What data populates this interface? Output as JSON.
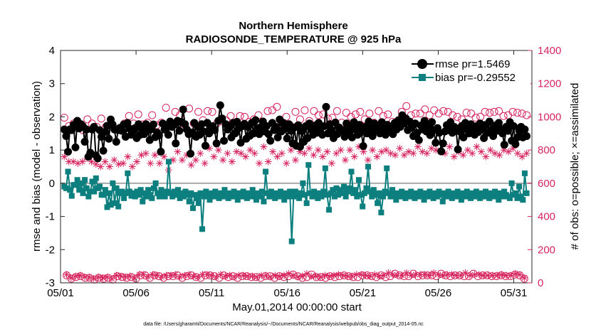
{
  "chart_data": {
    "type": "line",
    "title": "Northern Hemisphere",
    "subtitle": "RADIOSONDE_TEMPERATURE @ 925 hPa",
    "xlabel": "May.01,2014 00:00:00 start",
    "ylabel": "rmse and bias (model - observation)",
    "ylabel_right": "# of obs: o=possible; ×=assimilated",
    "footnote": "data file: /Users/gharamti/Documents/NCAR/Reanalysis/~/Documents/NCAR/Reanalysis/webpub/obs_diag_output_2014-05.nc",
    "x_ticks": [
      "05/01",
      "05/06",
      "05/11",
      "05/16",
      "05/21",
      "05/26",
      "05/31"
    ],
    "y_ticks": [
      "-3",
      "-2",
      "-1",
      "0",
      "1",
      "2",
      "3",
      "4"
    ],
    "y_ticks_right": [
      "0",
      "200",
      "400",
      "600",
      "800",
      "1000",
      "1200",
      "1400"
    ],
    "xlim": [
      0,
      31.2
    ],
    "ylim": [
      -3,
      4
    ],
    "ylim_right": [
      0,
      1400
    ],
    "legend_position": "top-right",
    "colors": {
      "rmse": "#000000",
      "bias": "#0d7f7f",
      "obs": "#d6245e",
      "zero_line": "#aaaaaa"
    },
    "series": [
      {
        "name": "rmse pr=1.5469",
        "axis": "left",
        "marker": "circle-filled",
        "values": [
          1.62,
          1.42,
          0.95,
          1.62,
          1.6,
          1.76,
          1.08,
          1.88,
          1.65,
          1.78,
          1.72,
          1.25,
          1.62,
          0.8,
          0.92,
          1.62,
          1.7,
          0.84,
          0.75,
          1.6,
          1.4,
          0.98,
          1.55,
          1.73,
          1.34,
          1.92,
          1.77,
          1.62,
          1.25,
          1.6,
          1.67,
          1.58,
          1.77,
          1.4,
          1.82,
          1.65,
          1.46,
          1.57,
          1.66,
          1.36,
          1.78,
          1.46,
          1.62,
          1.48,
          1.78,
          1.59,
          1.3,
          1.63,
          1.77,
          1.39,
          1.53,
          1.44,
          0.95,
          1.8,
          1.62,
          1.7,
          1.46,
          1.86,
          1.7,
          1.76,
          1.2,
          1.88,
          1.58,
          1.85,
          2.22,
          1.78,
          1.62,
          1.48,
          0.89,
          1.53,
          1.82,
          1.4,
          1.7,
          1.46,
          1.78,
          1.56,
          1.13,
          1.82,
          1.5,
          1.65,
          1.72,
          1.6,
          1.2,
          1.88,
          2.35,
          1.95,
          1.28,
          1.78,
          1.62,
          1.7,
          1.38,
          1.82,
          1.5,
          1.85,
          1.66,
          1.22,
          1.72,
          1.79,
          1.34,
          1.7,
          1.43,
          1.82,
          1.5,
          1.9,
          1.66,
          1.48,
          1.7,
          1.86,
          1.56,
          1.72,
          1.48,
          1.28,
          1.82,
          1.6,
          1.7,
          1.38,
          1.92,
          1.56,
          1.82,
          1.65,
          1.35,
          1.78,
          1.58,
          1.2,
          1.68,
          1.13,
          1.75,
          1.1,
          1.57,
          1.25,
          1.72,
          1.36,
          1.8,
          1.62,
          1.46,
          1.74,
          1.52,
          1.82,
          1.64,
          1.46,
          1.72,
          2.3,
          1.5,
          1.78,
          1.6,
          1.36,
          1.83,
          1.48,
          1.68,
          1.58,
          1.6,
          1.4,
          1.8,
          1.55,
          1.7,
          1.38,
          1.84,
          1.61,
          1.46,
          1.76,
          1.54,
          1.12,
          1.7,
          1.5,
          1.86,
          1.64,
          1.42,
          1.8,
          1.58,
          1.7,
          1.5,
          1.84,
          1.62,
          1.46,
          1.76,
          1.58,
          1.66,
          1.48,
          1.82,
          1.62,
          1.9,
          1.7,
          2.05,
          1.8,
          1.95,
          1.6,
          1.86,
          1.68,
          1.42,
          1.8,
          1.52,
          1.3,
          1.74,
          1.62,
          1.88,
          1.56,
          1.72,
          1.45,
          1.84,
          1.6,
          1.22,
          1.66,
          1.52,
          0.96,
          1.2,
          1.56,
          1.75,
          1.6,
          1.84,
          1.52,
          1.7,
          1.62,
          1.02,
          1.56,
          1.72,
          1.38,
          1.82,
          1.62,
          1.5,
          1.78,
          1.6,
          1.46,
          1.72,
          1.54,
          1.8,
          1.64,
          1.36,
          1.76,
          1.52,
          1.86,
          1.6,
          1.42,
          1.74,
          1.58,
          1.82,
          1.64,
          1.5,
          1.16,
          1.7,
          1.58,
          1.84,
          1.28,
          1.72,
          1.18,
          1.38,
          1.58,
          1.7,
          1.38,
          1.62,
          1.42
        ]
      },
      {
        "name": "bias pr=-0.29552",
        "axis": "left",
        "marker": "square-filled",
        "values": [
          -0.1,
          -0.15,
          0.35,
          -0.2,
          -0.38,
          -0.05,
          -0.05,
          0.1,
          -0.2,
          0.0,
          -0.3,
          0.1,
          -0.15,
          -0.4,
          -0.25,
          0.05,
          -0.25,
          0.15,
          -0.15,
          -0.1,
          -0.35,
          -0.35,
          -0.2,
          -0.72,
          -0.3,
          -0.65,
          0.0,
          -0.6,
          -0.15,
          -0.7,
          -0.3,
          -0.25,
          -0.45,
          -0.3,
          0.3,
          -0.25,
          -0.38,
          -0.3,
          -0.4,
          -0.25,
          -0.35,
          -0.2,
          -0.55,
          -0.3,
          -0.4,
          -0.2,
          -0.35,
          -0.45,
          -0.15,
          0.0,
          -0.3,
          -0.4,
          -0.2,
          -0.35,
          -0.4,
          -0.25,
          0.65,
          -0.3,
          -0.4,
          -0.25,
          -0.35,
          -0.2,
          -0.45,
          -0.3,
          -0.4,
          -0.25,
          -0.35,
          -0.55,
          -0.3,
          -0.75,
          -0.35,
          -0.45,
          -0.6,
          -0.3,
          -1.38,
          -0.4,
          -0.25,
          -0.35,
          -0.5,
          -0.3,
          -0.4,
          -0.25,
          -0.35,
          -0.45,
          -0.3,
          -0.4,
          -0.2,
          -0.35,
          -0.45,
          -0.3,
          -0.4,
          -0.25,
          -0.35,
          -0.5,
          -0.3,
          -0.4,
          -0.25,
          -0.35,
          -0.45,
          -0.3,
          -0.4,
          -0.2,
          -0.35,
          -0.5,
          -0.3,
          -0.4,
          -0.25,
          -0.55,
          0.35,
          -0.3,
          -0.4,
          -0.25,
          -0.35,
          -0.45,
          -0.3,
          -0.4,
          -0.25,
          -0.35,
          -0.5,
          -0.3,
          -0.4,
          -0.25,
          -1.75,
          -0.4,
          -0.25,
          -0.35,
          -0.45,
          -0.3,
          0.0,
          -0.35,
          -0.6,
          0.55,
          -0.3,
          -0.4,
          -0.25,
          -0.35,
          -0.45,
          -0.3,
          -0.4,
          -0.25,
          0.45,
          -0.35,
          -0.8,
          -0.3,
          -0.2,
          -0.4,
          -0.15,
          -0.35,
          -0.2,
          -0.3,
          -0.1,
          -0.4,
          -0.25,
          -0.15,
          0.35,
          -0.3,
          -0.2,
          -0.4,
          0.1,
          -0.35,
          -0.7,
          -0.3,
          -0.15,
          0.5,
          -0.25,
          -0.4,
          -0.2,
          -0.35,
          -0.6,
          -0.3,
          -0.88,
          -0.4,
          -0.25,
          0.45,
          -0.3,
          -0.4,
          -0.2,
          -0.35,
          -0.5,
          -0.3,
          -0.4,
          -0.25,
          -0.35,
          -0.45,
          -0.3,
          -0.4,
          -0.25,
          -0.35,
          -0.45,
          -0.3,
          -0.4,
          -0.25,
          -0.35,
          -0.5,
          -0.3,
          -0.4,
          -0.25,
          -0.35,
          -0.45,
          -0.3,
          -0.4,
          -0.25,
          -0.35,
          -0.55,
          -0.3,
          -0.4,
          -0.25,
          -0.35,
          -0.45,
          -0.3,
          -0.4,
          -0.25,
          -0.35,
          -0.5,
          -0.3,
          -0.4,
          -0.25,
          -0.35,
          -0.45,
          -0.3,
          -0.4,
          -0.25,
          -0.35,
          -0.45,
          -0.3,
          -0.4,
          -0.25,
          -0.35,
          -0.45,
          -0.3,
          -0.4,
          -0.25,
          -0.35,
          -0.5,
          -0.3,
          -0.4,
          -0.25,
          -0.35,
          -0.4,
          -0.45,
          0.0,
          -0.35,
          -0.3,
          -0.45,
          -0.1,
          -0.4,
          -0.5,
          0.3,
          -0.3
        ]
      },
      {
        "name": "possible",
        "axis": "right",
        "marker": "circle-open",
        "values": [
          995,
          45,
          945,
          25,
          960,
          35,
          950,
          40,
          920,
          30,
          985,
          30,
          960,
          20,
          940,
          30,
          990,
          25,
          940,
          30,
          955,
          20,
          930,
          40,
          925,
          35,
          960,
          30,
          1005,
          35,
          960,
          25,
          1015,
          45,
          955,
          45,
          965,
          30,
          1010,
          45,
          950,
          40,
          965,
          30,
          1055,
          40,
          955,
          40,
          1030,
          45,
          1010,
          30,
          955,
          40,
          1050,
          45,
          960,
          35,
          1030,
          30,
          980,
          45,
          1035,
          45,
          1030,
          40,
          960,
          30,
          975,
          45,
          980,
          35,
          1005,
          40,
          955,
          30,
          1005,
          40,
          1000,
          40,
          970,
          35,
          985,
          35,
          1010,
          30,
          945,
          40,
          1035,
          40,
          1040,
          30,
          1060,
          40,
          955,
          35,
          1000,
          40,
          945,
          50,
          1030,
          40,
          985,
          30,
          1040,
          35,
          975,
          50,
          1035,
          35,
          1010,
          35,
          1015,
          30,
          990,
          40,
          995,
          35,
          1035,
          40,
          965,
          45,
          1025,
          40,
          1000,
          35,
          1015,
          35,
          1030,
          45,
          985,
          45,
          1020,
          40,
          965,
          35,
          1035,
          45,
          1005,
          35,
          1015,
          40,
          970,
          55,
          945,
          45,
          1030,
          40,
          1065,
          40,
          1010,
          55,
          1020,
          40,
          1020,
          45,
          1045,
          45,
          1010,
          45,
          1040,
          40,
          1020,
          55,
          1035,
          45,
          1030,
          40,
          1010,
          45,
          1000,
          45,
          985,
          40,
          1025,
          40,
          1020,
          55,
          995,
          40,
          1000,
          45,
          1030,
          45,
          1025,
          40,
          1030,
          40,
          1035,
          45,
          1005,
          40,
          1010,
          40,
          1030,
          50,
          1025,
          45,
          1020,
          25,
          1010
        ]
      },
      {
        "name": "assimilated",
        "axis": "right",
        "marker": "asterisk",
        "values": [
          760,
          50,
          730,
          30,
          730,
          40,
          720,
          45,
          730,
          35,
          750,
          35,
          730,
          25,
          715,
          35,
          700,
          30,
          730,
          35,
          700,
          25,
          740,
          45,
          715,
          40,
          720,
          35,
          760,
          40,
          700,
          30,
          730,
          50,
          770,
          50,
          780,
          35,
          720,
          50,
          770,
          45,
          720,
          35,
          760,
          45,
          680,
          45,
          740,
          50,
          790,
          35,
          740,
          45,
          770,
          50,
          710,
          40,
          740,
          35,
          780,
          50,
          720,
          50,
          810,
          45,
          760,
          35,
          800,
          50,
          740,
          40,
          780,
          45,
          730,
          35,
          790,
          45,
          780,
          45,
          760,
          40,
          800,
          40,
          780,
          35,
          720,
          45,
          820,
          45,
          730,
          35,
          790,
          45,
          760,
          40,
          780,
          45,
          720,
          55,
          800,
          45,
          740,
          35,
          790,
          40,
          780,
          55,
          810,
          40,
          770,
          40,
          800,
          35,
          760,
          45,
          790,
          40,
          720,
          45,
          780,
          50,
          800,
          45,
          740,
          40,
          800,
          40,
          760,
          50,
          820,
          50,
          790,
          45,
          740,
          40,
          800,
          50,
          760,
          40,
          790,
          45,
          800,
          60,
          780,
          50,
          770,
          45,
          810,
          45,
          770,
          60,
          790,
          45,
          780,
          50,
          820,
          50,
          790,
          50,
          780,
          45,
          810,
          60,
          800,
          50,
          790,
          45,
          780,
          50,
          820,
          50,
          760,
          45,
          790,
          45,
          770,
          60,
          800,
          45,
          780,
          50,
          820,
          50,
          790,
          45,
          760,
          45,
          800,
          45,
          780,
          45,
          770,
          50,
          800,
          45,
          790,
          45,
          810,
          55,
          780,
          50,
          760,
          30,
          780
        ]
      }
    ]
  }
}
